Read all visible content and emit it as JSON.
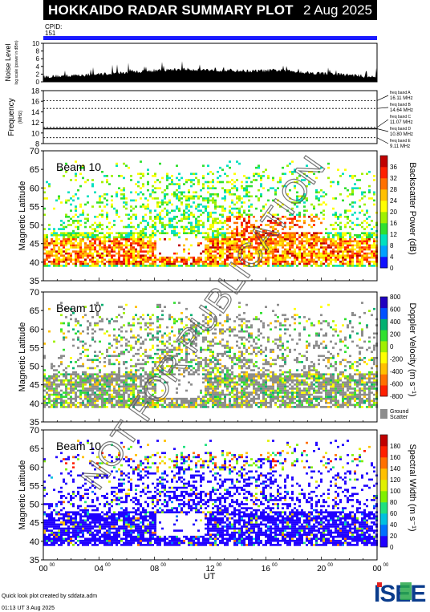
{
  "header": {
    "title": "HOKKAIDO RADAR SUMMARY PLOT",
    "date": "2 Aug 2025"
  },
  "cpid": {
    "label": "CPID:",
    "value": "151"
  },
  "watermark": "NOT FOR PUBLICATION",
  "footer": {
    "credit": "Quick look plot created by sddata.adm",
    "timestamp": "01:13 UT  3 Aug 2025",
    "logo": "ISEE"
  },
  "colors": {
    "header_bg": "#000000",
    "cpid_bar": "#1a1aff",
    "ground_scatter": "#8c8c8c",
    "noise_fill": "#000000"
  },
  "chart_data": [
    {
      "type": "area",
      "id": "noise",
      "ylabel": "Noise Level",
      "ylabel_sub": "log scale (power in dBm)",
      "yticks": [
        "0",
        "2",
        "4",
        "6",
        "8",
        "10"
      ],
      "ylim": [
        0,
        10
      ],
      "x": [
        0,
        1,
        2,
        3,
        4,
        5,
        6,
        7,
        8,
        9,
        10,
        11,
        12,
        13,
        14,
        15,
        16,
        17,
        18,
        19,
        20,
        21,
        22,
        23,
        24
      ],
      "values": [
        1.3,
        1.5,
        1.6,
        1.8,
        2.0,
        2.2,
        2.4,
        2.7,
        2.9,
        3.1,
        3.3,
        3.2,
        3.1,
        3.0,
        2.9,
        2.8,
        2.9,
        3.0,
        2.8,
        2.4,
        2.2,
        2.0,
        1.8,
        1.5,
        1.3
      ]
    },
    {
      "type": "line",
      "id": "frequency",
      "ylabel": "Frequency",
      "ylabel_sub": "(MHz)",
      "yticks": [
        "8",
        "10",
        "12",
        "14",
        "16",
        "18"
      ],
      "ylim": [
        8,
        18
      ],
      "bands": [
        {
          "label": "freq band A",
          "freq": "16.11 MHz",
          "value": 16.11
        },
        {
          "label": "freq band B",
          "freq": "14.64 MHz",
          "value": 14.64
        },
        {
          "label": "freq band C",
          "freq": "11.07 MHz",
          "value": 11.07
        },
        {
          "label": "freq band D",
          "freq": "10.80 MHz",
          "value": 10.8
        },
        {
          "label": "freq band E",
          "freq": "9.11 MHz",
          "value": 9.11
        }
      ],
      "operating": 10.8
    },
    {
      "type": "heatmap",
      "id": "power",
      "beam": "Beam 10",
      "ylabel": "Magnetic Latitude",
      "yticks": [
        "35",
        "40",
        "45",
        "50",
        "55",
        "60",
        "65",
        "70"
      ],
      "ylim": [
        35,
        70
      ],
      "colorbar": {
        "title": "Backscatter Power (dB)",
        "ticks": [
          "0",
          "4",
          "8",
          "12",
          "16",
          "20",
          "24",
          "28",
          "32",
          "36"
        ],
        "colors": [
          "#1010ff",
          "#00a0ff",
          "#00e0c0",
          "#30e030",
          "#a0f000",
          "#ffff00",
          "#ffc000",
          "#ff7000",
          "#ff2000",
          "#c00000"
        ]
      }
    },
    {
      "type": "heatmap",
      "id": "velocity",
      "beam": "Beam 10",
      "ylabel": "Magnetic Latitude",
      "yticks": [
        "35",
        "40",
        "45",
        "50",
        "55",
        "60",
        "65",
        "70"
      ],
      "ylim": [
        35,
        70
      ],
      "colorbar": {
        "title": "Doppler Velocity (m s⁻¹)",
        "ticks": [
          "-800",
          "-600",
          "-400",
          "-200",
          "0",
          "200",
          "400",
          "600",
          "800"
        ],
        "colors": [
          "#ff2000",
          "#ff7000",
          "#ffc000",
          "#ffff00",
          "#a0f000",
          "#30e030",
          "#00b070",
          "#0050ff",
          "#2000c0"
        ],
        "ground_label": "Ground Scatter"
      }
    },
    {
      "type": "heatmap",
      "id": "width",
      "beam": "Beam 10",
      "ylabel": "Magnetic Latitude",
      "yticks": [
        "35",
        "40",
        "45",
        "50",
        "55",
        "60",
        "65",
        "70"
      ],
      "ylim": [
        35,
        70
      ],
      "colorbar": {
        "title": "Spectral Width (m s⁻¹)",
        "ticks": [
          "0",
          "20",
          "40",
          "60",
          "80",
          "100",
          "120",
          "140",
          "160",
          "180"
        ],
        "colors": [
          "#2000ff",
          "#0070ff",
          "#00c0e0",
          "#20e080",
          "#80f000",
          "#e0f000",
          "#ffc000",
          "#ff7000",
          "#ff2000",
          "#c00000"
        ]
      }
    }
  ],
  "xaxis": {
    "label": "UT",
    "ticks": [
      "00",
      "04",
      "08",
      "12",
      "16",
      "20",
      "00"
    ],
    "ticks_sup": "00",
    "xlim": [
      0,
      24
    ]
  }
}
